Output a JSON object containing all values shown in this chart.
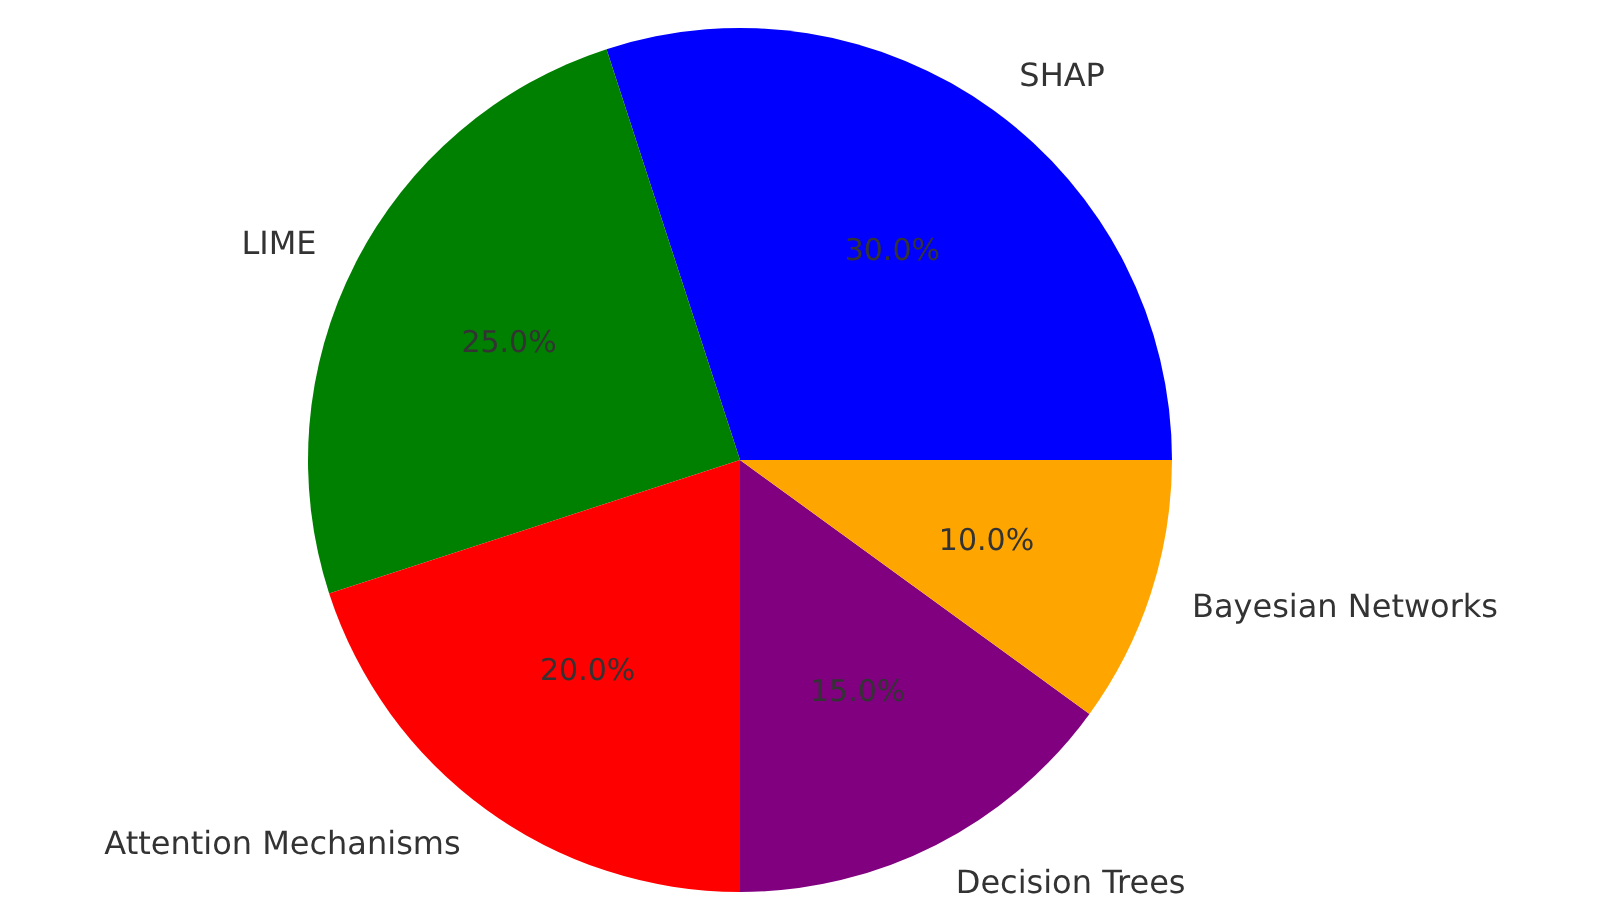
{
  "chart_data": {
    "type": "pie",
    "categories": [
      "SHAP",
      "LIME",
      "Attention Mechanisms",
      "Decision Trees",
      "Bayesian Networks"
    ],
    "values": [
      30,
      25,
      20,
      15,
      10
    ],
    "colors": [
      "#0000ff",
      "#008000",
      "#ff0000",
      "#800080",
      "#ffa500"
    ],
    "value_labels": [
      "30.0%",
      "25.0%",
      "20.0%",
      "15.0%",
      "10.0%"
    ]
  }
}
